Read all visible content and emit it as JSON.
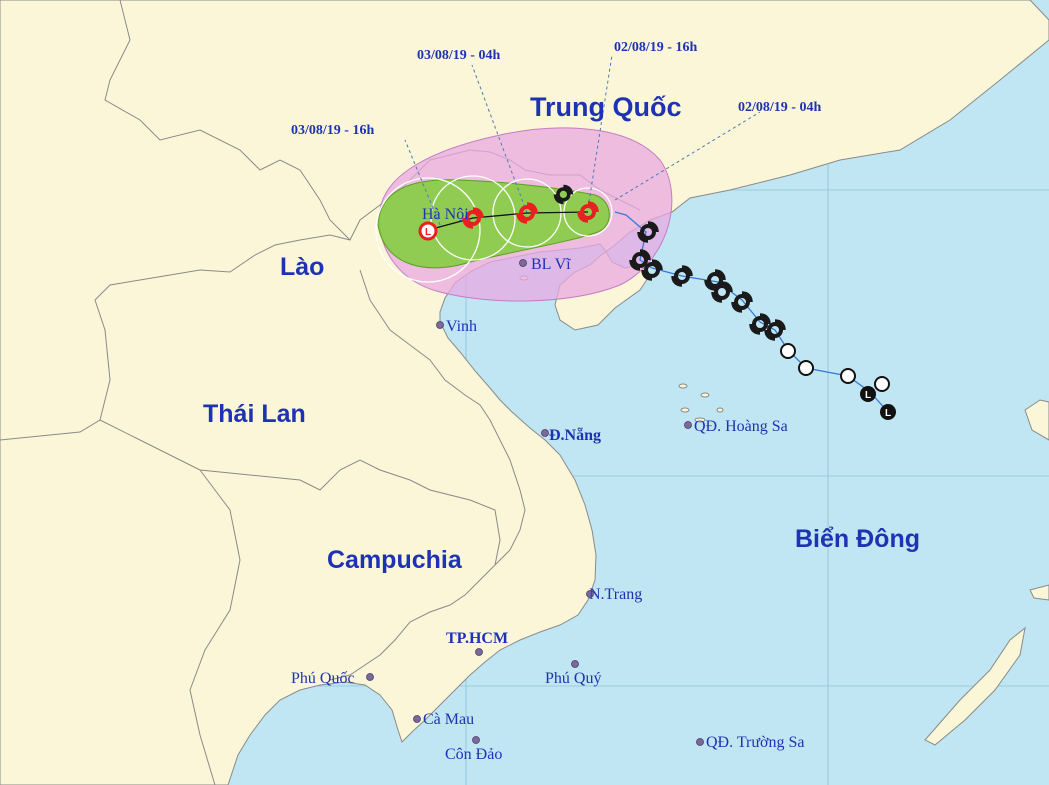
{
  "map": {
    "countries": {
      "china": "Trung Quốc",
      "laos": "Lào",
      "thailand": "Thái Lan",
      "cambodia": "Campuchia",
      "sea": "Biển Đông"
    },
    "places": {
      "hanoi": "Hà Nội",
      "bachlongvi": "BL Vĩ",
      "vinh": "Vinh",
      "danang": "Đ.Nẵng",
      "hoangsa": "QĐ. Hoàng Sa",
      "nhatrang": "N.Trang",
      "hcm": "TP.HCM",
      "phuquy": "Phú Quý",
      "phuquoc": "Phú Quốc",
      "camau": "Cà Mau",
      "condao": "Côn Đảo",
      "truongsa": "QĐ. Trường Sa"
    },
    "forecast_times": [
      "02/08/19 - 04h",
      "02/08/19 - 16h",
      "03/08/19 - 04h",
      "03/08/19 - 16h"
    ],
    "forecast_symbols": [
      "storm",
      "storm",
      "storm",
      "low-pressure"
    ],
    "colors": {
      "sea": "#bfe6f2",
      "land": "#fbf6d8",
      "risk_zone": "#e8a8e2",
      "wind_zone": "#7fcf3a",
      "forecast_symbol": "#e82020",
      "past_track": "#1a1a1a",
      "label": "#1e33b3"
    }
  }
}
